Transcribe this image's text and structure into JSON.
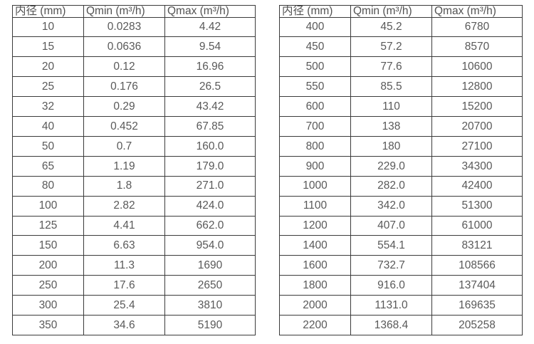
{
  "page": {
    "background": "#ffffff",
    "border_color": "#3b3b3b",
    "text_color": "#595959"
  },
  "chart_data": [
    {
      "type": "table",
      "title": "",
      "columns": [
        "内径 (mm)",
        "Qmin (m³/h)",
        "Qmax (m³/h)"
      ],
      "rows": [
        [
          "10",
          "0.0283",
          "4.42"
        ],
        [
          "15",
          "0.0636",
          "9.54"
        ],
        [
          "20",
          "0.12",
          "16.96"
        ],
        [
          "25",
          "0.176",
          "26.5"
        ],
        [
          "32",
          "0.29",
          "43.42"
        ],
        [
          "40",
          "0.452",
          "67.85"
        ],
        [
          "50",
          "0.7",
          "160.0"
        ],
        [
          "65",
          "1.19",
          "179.0"
        ],
        [
          "80",
          "1.8",
          "271.0"
        ],
        [
          "100",
          "2.82",
          "424.0"
        ],
        [
          "125",
          "4.41",
          "662.0"
        ],
        [
          "150",
          "6.63",
          "954.0"
        ],
        [
          "200",
          "11.3",
          "1690"
        ],
        [
          "250",
          "17.6",
          "2650"
        ],
        [
          "300",
          "25.4",
          "3810"
        ],
        [
          "350",
          "34.6",
          "5190"
        ]
      ]
    },
    {
      "type": "table",
      "title": "",
      "columns": [
        "内径 (mm)",
        "Qmin (m³/h)",
        "Qmax (m³/h)"
      ],
      "rows": [
        [
          "400",
          "45.2",
          "6780"
        ],
        [
          "450",
          "57.2",
          "8570"
        ],
        [
          "500",
          "77.6",
          "10600"
        ],
        [
          "550",
          "85.5",
          "12800"
        ],
        [
          "600",
          "110",
          "15200"
        ],
        [
          "700",
          "138",
          "20700"
        ],
        [
          "800",
          "180",
          "27100"
        ],
        [
          "900",
          "229.0",
          "34300"
        ],
        [
          "1000",
          "282.0",
          "42400"
        ],
        [
          "1100",
          "342.0",
          "51300"
        ],
        [
          "1200",
          "407.0",
          "61000"
        ],
        [
          "1400",
          "554.1",
          "83121"
        ],
        [
          "1600",
          "732.7",
          "108566"
        ],
        [
          "1800",
          "916.0",
          "137404"
        ],
        [
          "2000",
          "1131.0",
          "169635"
        ],
        [
          "2200",
          "1368.4",
          "205258"
        ]
      ]
    }
  ]
}
